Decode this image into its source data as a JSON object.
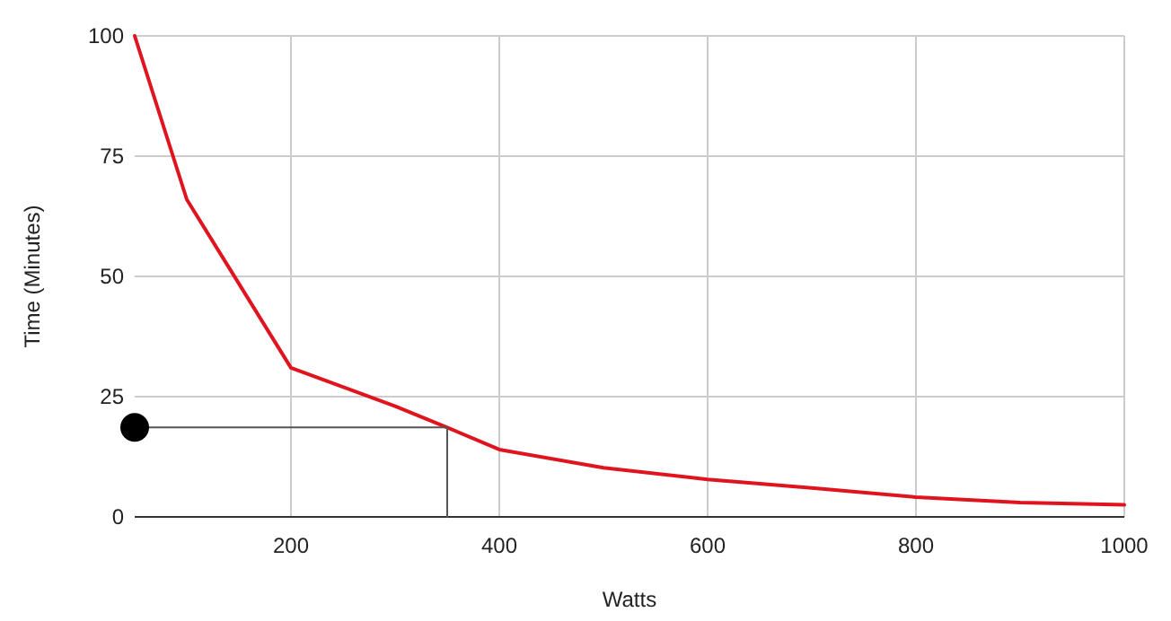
{
  "chart_data": {
    "type": "line",
    "xlabel": "Watts",
    "ylabel": "Time (Minutes)",
    "xlim": [
      50,
      1000
    ],
    "xticks": [
      200,
      400,
      600,
      800,
      1000
    ],
    "ylim": [
      0,
      100
    ],
    "yticks": [
      0,
      25,
      50,
      75,
      100
    ],
    "grid": true,
    "series": [
      {
        "color": "#e0141e",
        "x": [
          50,
          100,
          200,
          300,
          350,
          400,
          500,
          600,
          700,
          800,
          900,
          1000
        ],
        "values": [
          100,
          66,
          31,
          23,
          18.6,
          14,
          10.2,
          7.8,
          6,
          4.1,
          3,
          2.5
        ]
      },
      {
        "color": "#555555",
        "x": [
          50,
          350,
          350
        ],
        "values": [
          18.6,
          18.6,
          0
        ]
      },
      {
        "type": "scatter",
        "color": "#000000",
        "marker": "circle",
        "x": [
          50
        ],
        "values": [
          18.6
        ]
      }
    ]
  }
}
